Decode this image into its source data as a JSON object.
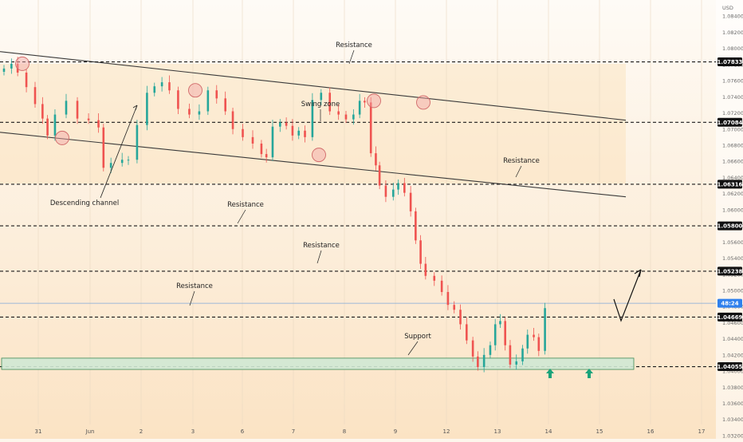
{
  "chart_data": {
    "type": "candlestick",
    "currency": "USD",
    "x_ticks": [
      "31",
      "Jun",
      "2",
      "3",
      "6",
      "7",
      "8",
      "9",
      "12",
      "13",
      "14",
      "15",
      "16",
      "17"
    ],
    "y_ticks": [
      "1.08400",
      "1.08200",
      "1.08000",
      "1.07800",
      "1.07600",
      "1.07400",
      "1.07200",
      "1.07000",
      "1.06800",
      "1.06600",
      "1.06400",
      "1.06200",
      "1.06000",
      "1.05800",
      "1.05600",
      "1.05400",
      "1.05200",
      "1.05000",
      "1.04800",
      "1.04600",
      "1.04400",
      "1.04200",
      "1.04000",
      "1.03800",
      "1.03600",
      "1.03400",
      "1.03200"
    ],
    "ylim": [
      1.0316,
      1.086
    ],
    "horizontal_levels": [
      {
        "label": "1.07833",
        "value": 1.07833
      },
      {
        "label": "1.07084",
        "value": 1.07084
      },
      {
        "label": "1.06316",
        "value": 1.06316
      },
      {
        "label": "1.05800",
        "value": 1.058
      },
      {
        "label": "1.05238",
        "value": 1.05238
      },
      {
        "label": "1.04669",
        "value": 1.04669
      },
      {
        "label": "1.04055",
        "value": 1.04055
      }
    ],
    "current_price": {
      "label": "48:24",
      "value": 1.0484
    },
    "annotations": {
      "resistance_top": "Resistance",
      "swing_zone": "Swing  zone",
      "resistance_right": "Resistance",
      "descending_channel": "Descending channel",
      "resistance_1": "Resistance",
      "resistance_2": "Resistance",
      "resistance_3": "Resistance",
      "support": "Support"
    },
    "series": [
      {
        "x": 0.0,
        "close": 1.0775
      },
      {
        "x": 0.3,
        "close": 1.0781
      },
      {
        "x": 0.55,
        "close": 1.077
      },
      {
        "x": 0.9,
        "close": 1.0752
      },
      {
        "x": 1.25,
        "close": 1.0731
      },
      {
        "x": 1.55,
        "close": 1.0713
      },
      {
        "x": 1.75,
        "close": 1.0692
      },
      {
        "x": 2.05,
        "close": 1.0718
      },
      {
        "x": 2.5,
        "close": 1.0735
      },
      {
        "x": 2.95,
        "close": 1.0713
      },
      {
        "x": 3.4,
        "close": 1.0711
      },
      {
        "x": 3.8,
        "close": 1.0702
      },
      {
        "x": 4.0,
        "close": 1.0652
      },
      {
        "x": 4.3,
        "close": 1.0658
      },
      {
        "x": 4.75,
        "close": 1.0662
      },
      {
        "x": 5.0,
        "close": 1.0662
      },
      {
        "x": 5.35,
        "close": 1.0705
      },
      {
        "x": 5.75,
        "close": 1.0745
      },
      {
        "x": 6.05,
        "close": 1.0753
      },
      {
        "x": 6.35,
        "close": 1.0758
      },
      {
        "x": 6.65,
        "close": 1.0748
      },
      {
        "x": 7.0,
        "close": 1.0725
      },
      {
        "x": 7.45,
        "close": 1.0718
      },
      {
        "x": 7.85,
        "close": 1.0722
      },
      {
        "x": 8.2,
        "close": 1.0748
      },
      {
        "x": 8.55,
        "close": 1.0738
      },
      {
        "x": 8.9,
        "close": 1.0722
      },
      {
        "x": 9.2,
        "close": 1.07
      },
      {
        "x": 9.6,
        "close": 1.069
      },
      {
        "x": 10.0,
        "close": 1.0682
      },
      {
        "x": 10.35,
        "close": 1.0669
      },
      {
        "x": 10.55,
        "close": 1.0665
      },
      {
        "x": 10.8,
        "close": 1.0703
      },
      {
        "x": 11.1,
        "close": 1.0708
      },
      {
        "x": 11.35,
        "close": 1.0704
      },
      {
        "x": 11.6,
        "close": 1.0692
      },
      {
        "x": 11.85,
        "close": 1.0698
      },
      {
        "x": 12.1,
        "close": 1.069
      },
      {
        "x": 12.4,
        "close": 1.0736
      },
      {
        "x": 12.75,
        "close": 1.0745
      },
      {
        "x": 13.1,
        "close": 1.0722
      },
      {
        "x": 13.45,
        "close": 1.0718
      },
      {
        "x": 13.75,
        "close": 1.0712
      },
      {
        "x": 14.05,
        "close": 1.0718
      },
      {
        "x": 14.3,
        "close": 1.0735
      },
      {
        "x": 14.5,
        "close": 1.0733
      },
      {
        "x": 14.75,
        "close": 1.067
      },
      {
        "x": 14.95,
        "close": 1.0655
      },
      {
        "x": 15.1,
        "close": 1.063
      },
      {
        "x": 15.35,
        "close": 1.0616
      },
      {
        "x": 15.65,
        "close": 1.0625
      },
      {
        "x": 15.85,
        "close": 1.0633
      },
      {
        "x": 16.1,
        "close": 1.0621
      },
      {
        "x": 16.35,
        "close": 1.0598
      },
      {
        "x": 16.55,
        "close": 1.0562
      },
      {
        "x": 16.75,
        "close": 1.0533
      },
      {
        "x": 16.95,
        "close": 1.0518
      },
      {
        "x": 17.3,
        "close": 1.0512
      },
      {
        "x": 17.6,
        "close": 1.0498
      },
      {
        "x": 17.85,
        "close": 1.0482
      },
      {
        "x": 18.1,
        "close": 1.0476
      },
      {
        "x": 18.35,
        "close": 1.0458
      },
      {
        "x": 18.6,
        "close": 1.0438
      },
      {
        "x": 18.85,
        "close": 1.0418
      },
      {
        "x": 19.05,
        "close": 1.0405
      },
      {
        "x": 19.3,
        "close": 1.042
      },
      {
        "x": 19.55,
        "close": 1.0432
      },
      {
        "x": 19.75,
        "close": 1.0458
      },
      {
        "x": 19.95,
        "close": 1.0462
      },
      {
        "x": 20.15,
        "close": 1.0432
      },
      {
        "x": 20.35,
        "close": 1.0408
      },
      {
        "x": 20.6,
        "close": 1.0412
      },
      {
        "x": 20.85,
        "close": 1.0428
      },
      {
        "x": 21.05,
        "close": 1.0445
      },
      {
        "x": 21.3,
        "close": 1.0442
      },
      {
        "x": 21.5,
        "close": 1.0425
      },
      {
        "x": 21.75,
        "close": 1.0478
      }
    ]
  }
}
